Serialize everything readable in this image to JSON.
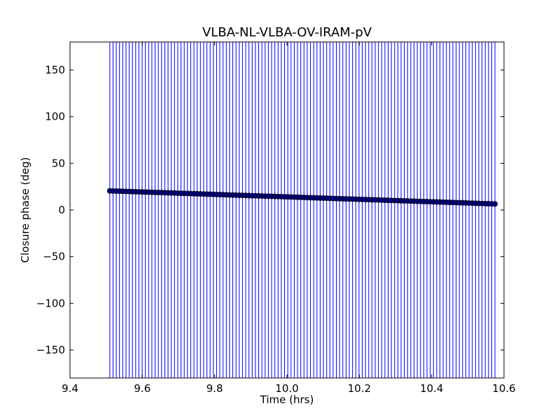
{
  "chart_data": {
    "type": "scatter",
    "title": "VLBA-NL-VLBA-OV-IRAM-pV",
    "xlabel": "Time (hrs)",
    "ylabel": "Closure phase (deg)",
    "xlim": [
      9.4,
      10.6
    ],
    "ylim": [
      -180,
      180
    ],
    "x_ticks": [
      9.4,
      9.6,
      9.8,
      10.0,
      10.2,
      10.4,
      10.6
    ],
    "x_tick_labels": [
      "9.4",
      "9.6",
      "9.8",
      "10.0",
      "10.2",
      "10.4",
      "10.6"
    ],
    "y_ticks": [
      -150,
      -100,
      -50,
      0,
      50,
      100,
      150
    ],
    "y_tick_labels": [
      "−150",
      "−100",
      "−50",
      "0",
      "50",
      "100",
      "150"
    ],
    "grid": false,
    "series": [
      {
        "color": "#000080",
        "errorbar_color": "#0000ff",
        "x_start": 9.51,
        "x_end": 10.575,
        "y_start": 20.5,
        "y_end": 6.5,
        "n_points": 120,
        "error_low": -180,
        "error_high": 180
      }
    ]
  }
}
